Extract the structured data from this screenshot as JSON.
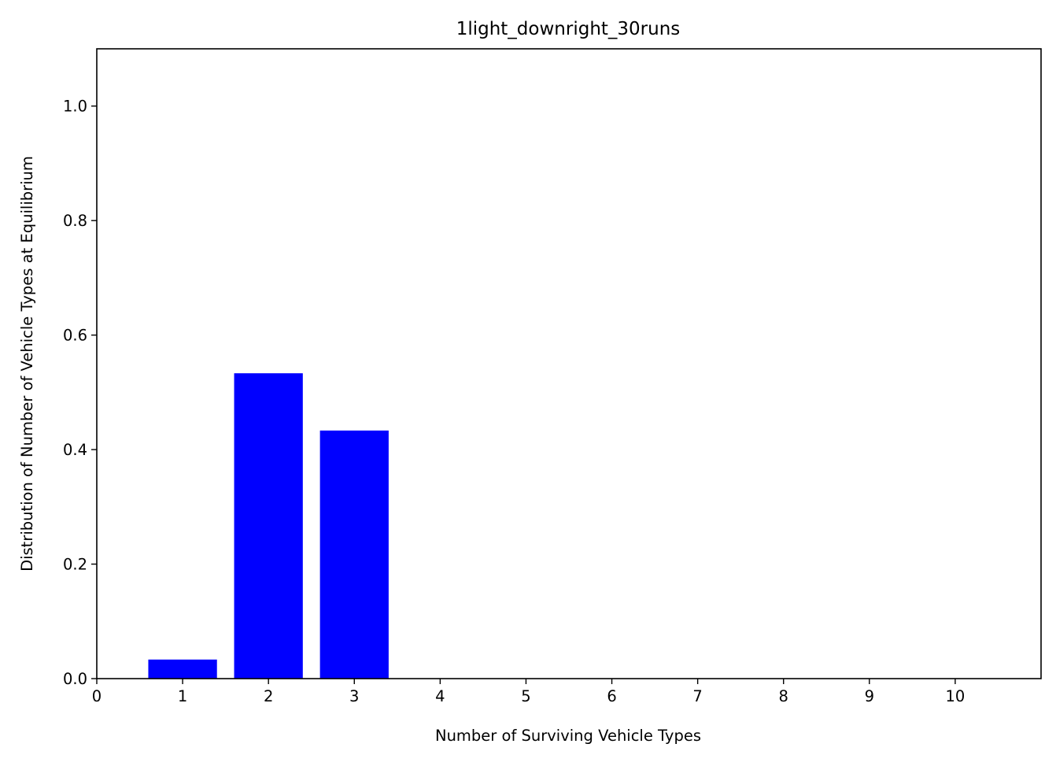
{
  "chart_data": {
    "type": "bar",
    "title": "1light_downright_30runs",
    "xlabel": "Number of Surviving Vehicle Types",
    "ylabel": "Distribution of Number of Vehicle Types at Equilibrium",
    "categories": [
      1,
      2,
      3,
      4,
      5,
      6,
      7,
      8,
      9,
      10
    ],
    "values": [
      0.0333,
      0.5333,
      0.4333,
      0,
      0,
      0,
      0,
      0,
      0,
      0
    ],
    "xlim": [
      0,
      11
    ],
    "ylim": [
      0,
      1.1
    ],
    "xticks": [
      "0",
      "1",
      "2",
      "3",
      "4",
      "5",
      "6",
      "7",
      "8",
      "9",
      "10"
    ],
    "yticks": [
      "0.0",
      "0.2",
      "0.4",
      "0.6",
      "0.8",
      "1.0"
    ],
    "bar_color": "#0000ff",
    "grid": false,
    "legend": "none"
  }
}
